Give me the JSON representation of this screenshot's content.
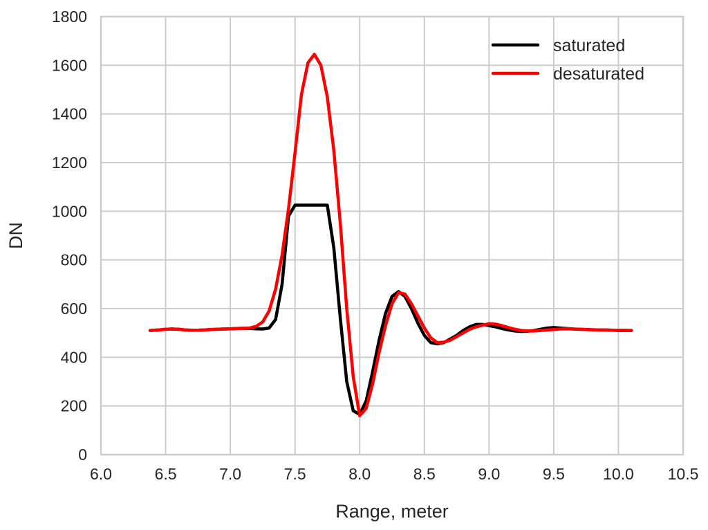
{
  "chart_data": {
    "type": "line",
    "xlabel": "Range, meter",
    "ylabel": "DN",
    "xlim": [
      6.0,
      10.5
    ],
    "ylim": [
      0,
      1800
    ],
    "xticks": [
      6.0,
      6.5,
      7.0,
      7.5,
      8.0,
      8.5,
      9.0,
      9.5,
      10.0,
      10.5
    ],
    "xtick_labels": [
      "6.0",
      "6.5",
      "7.0",
      "7.5",
      "8.0",
      "8.5",
      "9.0",
      "9.5",
      "10.0",
      "10.5"
    ],
    "yticks": [
      0,
      200,
      400,
      600,
      800,
      1000,
      1200,
      1400,
      1600,
      1800
    ],
    "ytick_labels": [
      "0",
      "200",
      "400",
      "600",
      "800",
      "1000",
      "1200",
      "1400",
      "1600",
      "1800"
    ],
    "grid": true,
    "legend": "top-right",
    "series": [
      {
        "name": "saturated",
        "color": "#000000",
        "x": [
          6.38,
          6.45,
          6.5,
          6.55,
          6.6,
          6.65,
          6.7,
          6.75,
          6.8,
          6.85,
          6.9,
          6.95,
          7.0,
          7.05,
          7.1,
          7.15,
          7.2,
          7.25,
          7.3,
          7.35,
          7.4,
          7.45,
          7.5,
          7.55,
          7.6,
          7.65,
          7.7,
          7.75,
          7.8,
          7.85,
          7.9,
          7.95,
          8.0,
          8.05,
          8.1,
          8.15,
          8.2,
          8.25,
          8.3,
          8.35,
          8.4,
          8.45,
          8.5,
          8.55,
          8.6,
          8.65,
          8.7,
          8.75,
          8.8,
          8.85,
          8.9,
          8.95,
          9.0,
          9.05,
          9.1,
          9.15,
          9.2,
          9.25,
          9.3,
          9.35,
          9.4,
          9.45,
          9.5,
          9.55,
          9.6,
          9.65,
          9.7,
          9.75,
          9.8,
          9.85,
          9.9,
          9.95,
          10.0,
          10.05,
          10.1
        ],
        "y": [
          510,
          512,
          515,
          516,
          515,
          512,
          511,
          511,
          512,
          514,
          515,
          516,
          517,
          518,
          519,
          518,
          517,
          516,
          520,
          555,
          700,
          980,
          1025,
          1025,
          1025,
          1025,
          1025,
          1025,
          850,
          560,
          300,
          180,
          165,
          220,
          340,
          470,
          580,
          650,
          670,
          650,
          600,
          540,
          490,
          460,
          455,
          460,
          475,
          490,
          510,
          525,
          535,
          535,
          530,
          525,
          518,
          512,
          508,
          506,
          507,
          510,
          515,
          520,
          522,
          520,
          518,
          516,
          515,
          514,
          513,
          512,
          512,
          511,
          510,
          510,
          510
        ]
      },
      {
        "name": "desaturated",
        "color": "#ff0000",
        "x": [
          6.38,
          6.45,
          6.5,
          6.55,
          6.6,
          6.65,
          6.7,
          6.75,
          6.8,
          6.85,
          6.9,
          6.95,
          7.0,
          7.05,
          7.1,
          7.15,
          7.2,
          7.25,
          7.3,
          7.35,
          7.4,
          7.45,
          7.5,
          7.55,
          7.6,
          7.65,
          7.7,
          7.75,
          7.8,
          7.85,
          7.9,
          7.95,
          8.0,
          8.05,
          8.1,
          8.15,
          8.2,
          8.25,
          8.3,
          8.35,
          8.4,
          8.45,
          8.5,
          8.55,
          8.6,
          8.65,
          8.7,
          8.75,
          8.8,
          8.85,
          8.9,
          8.95,
          9.0,
          9.05,
          9.1,
          9.15,
          9.2,
          9.25,
          9.3,
          9.35,
          9.4,
          9.45,
          9.5,
          9.55,
          9.6,
          9.65,
          9.7,
          9.75,
          9.8,
          9.85,
          9.9,
          9.95,
          10.0,
          10.05,
          10.1
        ],
        "y": [
          510,
          512,
          515,
          516,
          515,
          512,
          511,
          511,
          512,
          514,
          515,
          516,
          517,
          518,
          519,
          520,
          527,
          545,
          590,
          680,
          820,
          1010,
          1240,
          1480,
          1610,
          1645,
          1600,
          1470,
          1250,
          950,
          600,
          320,
          160,
          190,
          290,
          420,
          530,
          620,
          665,
          660,
          620,
          570,
          520,
          480,
          460,
          462,
          470,
          485,
          500,
          515,
          525,
          532,
          538,
          536,
          530,
          522,
          515,
          510,
          508,
          508,
          510,
          512,
          514,
          516,
          517,
          516,
          515,
          514,
          513,
          512,
          512,
          511,
          511,
          511,
          510
        ]
      }
    ]
  }
}
